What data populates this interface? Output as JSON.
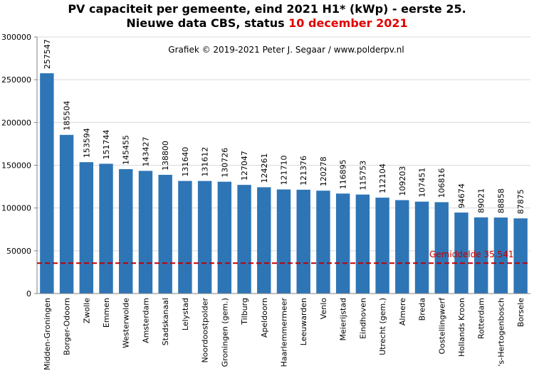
{
  "title": {
    "line1": "PV capaciteit per gemeente, eind 2021 H1* (kWp) - eerste 25.",
    "line2_prefix": "Nieuwe data CBS, status ",
    "line2_date": "10 december 2021"
  },
  "credit": "Grafiek  © 2019-2021 Peter J. Segaar / www.polderpv.nl",
  "colors": {
    "bar": "#2e75b6",
    "average_line": "#c00000",
    "date": "#e00000"
  },
  "chart_data": {
    "type": "bar",
    "title": "PV capaciteit per gemeente, eind 2021 H1* (kWp) - eerste 25.",
    "subtitle": "Nieuwe data CBS, status 10 december 2021",
    "xlabel": "",
    "ylabel": "",
    "ylim": [
      0,
      300000
    ],
    "yticks": [
      0,
      50000,
      100000,
      150000,
      200000,
      250000,
      300000
    ],
    "ytick_labels": [
      "0",
      "50000",
      "100000",
      "150000",
      "200000",
      "250000",
      "300000"
    ],
    "grid": true,
    "categories": [
      "Midden-Groningen",
      "Borger-Odoorn",
      "Zwolle",
      "Emmen",
      "Westerwolde",
      "Amsterdam",
      "Stadskanaal",
      "Lelystad",
      "Noordoostpolder",
      "Groningen (gem.)",
      "Tilburg",
      "Apeldoorn",
      "Haarlemmermeer",
      "Leeuwarden",
      "Venlo",
      "Meierijstad",
      "Eindhoven",
      "Utrecht (gem.)",
      "Almere",
      "Breda",
      "Oostellingwerf",
      "Hollands Kroon",
      "Rotterdam",
      "'s-Hertogenbosch",
      "Borsele"
    ],
    "values": [
      257547,
      185504,
      153594,
      151744,
      145455,
      143427,
      138800,
      131640,
      131612,
      130726,
      127047,
      124261,
      121710,
      121376,
      120278,
      116895,
      115753,
      112104,
      109203,
      107451,
      106816,
      94674,
      89021,
      88858,
      87875
    ],
    "value_labels": [
      "257547",
      "185504",
      "153594",
      "151744",
      "145455",
      "143427",
      "138800",
      "131640",
      "131612",
      "130726",
      "127047",
      "124261",
      "121710",
      "121376",
      "120278",
      "116895",
      "115753",
      "112104",
      "109203",
      "107451",
      "106816",
      "94674",
      "89021",
      "88858",
      "87875"
    ],
    "reference_line": {
      "label": "Gemiddelde  35.541",
      "value": 35541
    }
  }
}
